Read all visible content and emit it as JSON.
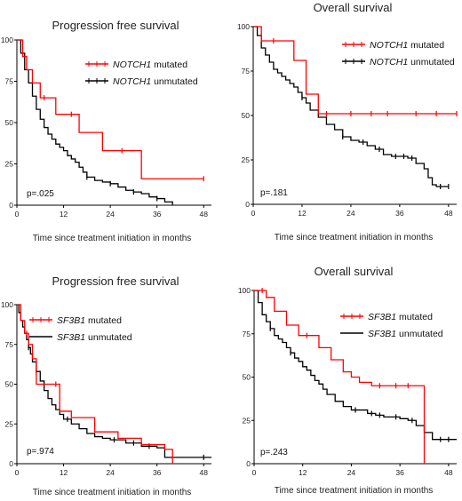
{
  "chart_data": [
    {
      "type": "line",
      "title": "Progression free survival",
      "xlabel": "Time since treatment initiation in months",
      "ylabel": "",
      "xlim": [
        0,
        50
      ],
      "ylim": [
        0,
        100
      ],
      "xticks": [
        0,
        12,
        24,
        36,
        48
      ],
      "yticks": [
        0,
        25,
        50,
        75,
        100
      ],
      "xtick_labels": [
        "0",
        "12",
        "24",
        "36",
        "48"
      ],
      "ytick_labels": [
        "0",
        "25",
        "50",
        "75",
        "100"
      ],
      "legend_position": "top-right",
      "pvalue": "p=.025",
      "series": [
        {
          "name": "mutated",
          "name_gene": "NOTCH1",
          "color": "#ff0000",
          "x": [
            0,
            1.5,
            2.5,
            4,
            6,
            10,
            16,
            22,
            28,
            32,
            40,
            48
          ],
          "y": [
            100,
            90,
            82,
            74,
            65,
            55,
            44,
            33,
            33,
            16,
            16,
            16
          ],
          "censored": [
            [
              7,
              65
            ],
            [
              14,
              55
            ],
            [
              27,
              33
            ],
            [
              48,
              16
            ]
          ]
        },
        {
          "name": "unmutated",
          "name_gene": "NOTCH1",
          "color": "#000000",
          "x": [
            0,
            1,
            2,
            3,
            4,
            5,
            6,
            7,
            8,
            9,
            10,
            11,
            12,
            13,
            14,
            15,
            16,
            17,
            18,
            20,
            22,
            24,
            26,
            28,
            30,
            32,
            34,
            36,
            38,
            40
          ],
          "y": [
            100,
            92,
            82,
            74,
            66,
            58,
            52,
            47,
            43,
            40,
            37,
            35,
            33,
            30,
            28,
            26,
            23,
            20,
            17,
            15,
            14,
            13,
            11,
            9,
            8,
            7,
            5,
            4,
            2,
            0
          ],
          "censored": [
            [
              18,
              17
            ],
            [
              24,
              13
            ],
            [
              30,
              8
            ],
            [
              36,
              4
            ]
          ]
        }
      ]
    },
    {
      "type": "line",
      "title": "Overall survival",
      "xlabel": "Time since treatment initiation in months",
      "ylabel": "",
      "xlim": [
        0,
        50
      ],
      "ylim": [
        0,
        100
      ],
      "xticks": [
        0,
        12,
        24,
        36,
        48
      ],
      "yticks": [
        0,
        25,
        50,
        75,
        100
      ],
      "xtick_labels": [
        "0",
        "12",
        "24",
        "36",
        "48"
      ],
      "ytick_labels": [
        "0",
        "25",
        "50",
        "75",
        "100"
      ],
      "legend_position": "top-right",
      "pvalue": "p=.181",
      "series": [
        {
          "name": "mutated",
          "name_gene": "NOTCH1",
          "color": "#ff0000",
          "x": [
            0,
            2,
            10,
            13,
            16,
            50
          ],
          "y": [
            100,
            92,
            81,
            62,
            51,
            51
          ],
          "censored": [
            [
              5,
              92
            ],
            [
              18,
              51
            ],
            [
              24,
              51
            ],
            [
              29,
              51
            ],
            [
              33,
              51
            ],
            [
              40,
              51
            ],
            [
              45,
              51
            ],
            [
              50,
              51
            ]
          ]
        },
        {
          "name": "unmutated",
          "name_gene": "NOTCH1",
          "color": "#000000",
          "x": [
            0,
            1,
            2,
            3,
            4,
            5,
            6,
            7,
            8,
            9,
            10,
            11,
            12,
            13,
            14,
            16,
            18,
            20,
            22,
            24,
            26,
            28,
            30,
            32,
            34,
            36,
            38,
            40,
            42,
            43,
            44,
            45,
            48
          ],
          "y": [
            100,
            95,
            88,
            84,
            80,
            76,
            74,
            72,
            70,
            68,
            66,
            63,
            60,
            57,
            53,
            49,
            45,
            42,
            38,
            36,
            35,
            33,
            31,
            28,
            27,
            27,
            26,
            23,
            20,
            15,
            11,
            10,
            10
          ],
          "censored": [
            [
              12,
              60
            ],
            [
              22,
              38
            ],
            [
              27,
              35
            ],
            [
              31,
              31
            ],
            [
              35,
              27
            ],
            [
              37,
              27
            ],
            [
              39,
              26
            ],
            [
              46,
              10
            ],
            [
              48,
              10
            ]
          ]
        }
      ]
    },
    {
      "type": "line",
      "title": "Progression free survival",
      "xlabel": "Time since treatment initiation in months",
      "ylabel": "",
      "xlim": [
        0,
        50
      ],
      "ylim": [
        0,
        100
      ],
      "xticks": [
        0,
        12,
        24,
        36,
        48
      ],
      "yticks": [
        0,
        25,
        50,
        75,
        100
      ],
      "xtick_labels": [
        "0",
        "12",
        "24",
        "36",
        "48"
      ],
      "ytick_labels": [
        "0",
        "25",
        "50",
        "75",
        "100"
      ],
      "legend_position": "top-right",
      "pvalue": "p=.974",
      "series": [
        {
          "name": "mutated",
          "name_gene": "SF3B1",
          "color": "#ff0000",
          "x": [
            0,
            1,
            2,
            3,
            4,
            5,
            8,
            11,
            14,
            20,
            26,
            32,
            38,
            40
          ],
          "y": [
            100,
            90,
            82,
            75,
            66,
            50,
            50,
            33,
            29,
            20,
            16,
            12,
            9,
            0
          ],
          "censored": [
            [
              2.5,
              82
            ],
            [
              10,
              50
            ]
          ]
        },
        {
          "name": "unmutated",
          "name_gene": "SF3B1",
          "color": "#000000",
          "x": [
            0,
            0.5,
            1,
            1.5,
            2,
            2.5,
            3,
            3.5,
            4,
            5,
            6,
            7,
            8,
            9,
            10,
            11,
            12,
            14,
            16,
            18,
            20,
            22,
            24,
            28,
            32,
            36,
            38,
            50
          ],
          "y": [
            100,
            95,
            90,
            86,
            82,
            78,
            73,
            69,
            64,
            58,
            52,
            46,
            41,
            37,
            34,
            31,
            28,
            25,
            22,
            19,
            17,
            16,
            15,
            13,
            11,
            10,
            4,
            4
          ],
          "censored": [
            [
              3,
              73
            ],
            [
              5,
              58
            ],
            [
              13,
              28
            ],
            [
              25,
              15
            ],
            [
              30,
              13
            ],
            [
              34,
              11
            ],
            [
              48,
              4
            ]
          ]
        }
      ]
    },
    {
      "type": "line",
      "title": "Overall survival",
      "xlabel": "Time since treatment initiation in months",
      "ylabel": "",
      "xlim": [
        0,
        50
      ],
      "ylim": [
        0,
        100
      ],
      "xticks": [
        0,
        12,
        24,
        36,
        48
      ],
      "yticks": [
        0,
        25,
        50,
        75,
        100
      ],
      "xtick_labels": [
        "0",
        "12",
        "24",
        "36",
        "48"
      ],
      "ytick_labels": [
        "0",
        "25",
        "50",
        "75",
        "100"
      ],
      "legend_position": "top-right",
      "pvalue": "p=.243",
      "series": [
        {
          "name": "mutated",
          "name_gene": "SF3B1",
          "color": "#ff0000",
          "x": [
            0,
            3,
            5,
            8,
            11,
            16,
            19,
            22,
            24,
            26,
            29,
            42,
            42
          ],
          "y": [
            100,
            96,
            88,
            80,
            74,
            67,
            60,
            53,
            50,
            47,
            45,
            45,
            0
          ],
          "censored": [
            [
              2,
              100
            ],
            [
              13,
              74
            ],
            [
              31,
              45
            ],
            [
              35,
              45
            ],
            [
              38,
              45
            ]
          ]
        },
        {
          "name": "unmutated",
          "name_gene": "SF3B1",
          "color": "#000000",
          "x": [
            0,
            1,
            2,
            3,
            4,
            5,
            6,
            7,
            8,
            9,
            10,
            11,
            12,
            13,
            14,
            15,
            16,
            17,
            18,
            20,
            22,
            24,
            26,
            28,
            30,
            32,
            34,
            36,
            38,
            40,
            42,
            44,
            50
          ],
          "y": [
            100,
            93,
            86,
            82,
            78,
            74,
            72,
            70,
            67,
            64,
            61,
            59,
            56,
            54,
            51,
            48,
            46,
            43,
            40,
            36,
            33,
            31,
            31,
            29,
            28,
            27,
            27,
            26,
            25,
            22,
            18,
            14,
            14
          ],
          "censored": [
            [
              4,
              78
            ],
            [
              9,
              64
            ],
            [
              25,
              31
            ],
            [
              29,
              29
            ],
            [
              31,
              28
            ],
            [
              35,
              27
            ],
            [
              39,
              25
            ],
            [
              46,
              14
            ],
            [
              48,
              14
            ]
          ]
        }
      ]
    }
  ]
}
